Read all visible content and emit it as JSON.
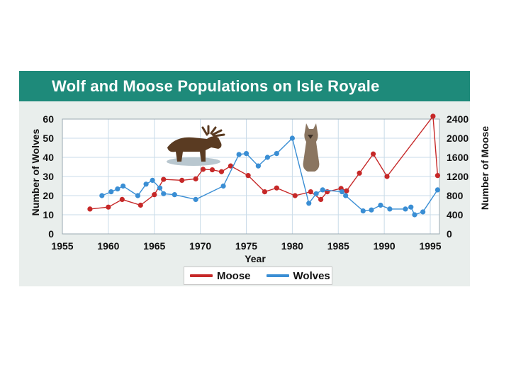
{
  "chart_data": {
    "type": "line",
    "title": "Wolf and Moose Populations on Isle Royale",
    "xlabel": "Year",
    "ylabel_left": "Number of Wolves",
    "ylabel_right": "Number of Moose",
    "xlim": [
      1955,
      1996
    ],
    "x_ticks": [
      "1955",
      "1960",
      "1965",
      "1970",
      "1975",
      "1980",
      "1985",
      "1990",
      "1995"
    ],
    "ylim_left": [
      0,
      60
    ],
    "y_ticks_left": [
      "0",
      "10",
      "20",
      "30",
      "40",
      "50",
      "60"
    ],
    "ylim_right": [
      0,
      2400
    ],
    "y_ticks_right": [
      "0",
      "400",
      "800",
      "1200",
      "1600",
      "2000",
      "2400"
    ],
    "grid": true,
    "legend_position": "bottom-center",
    "series": [
      {
        "name": "Moose",
        "axis": "right",
        "color": "#c62828",
        "points": [
          [
            1958,
            520
          ],
          [
            1960,
            560
          ],
          [
            1961.5,
            720
          ],
          [
            1963.5,
            600
          ],
          [
            1965,
            820
          ],
          [
            1966,
            1140
          ],
          [
            1968,
            1120
          ],
          [
            1969.5,
            1150
          ],
          [
            1970.3,
            1350
          ],
          [
            1971.3,
            1340
          ],
          [
            1972.3,
            1300
          ],
          [
            1973.3,
            1420
          ],
          [
            1975.2,
            1220
          ],
          [
            1977,
            880
          ],
          [
            1978.3,
            960
          ],
          [
            1980.3,
            800
          ],
          [
            1982,
            880
          ],
          [
            1983.1,
            720
          ],
          [
            1983.8,
            880
          ],
          [
            1985.3,
            950
          ],
          [
            1985.9,
            900
          ],
          [
            1987.3,
            1270
          ],
          [
            1988.8,
            1670
          ],
          [
            1990.3,
            1200
          ],
          [
            1995.3,
            2460
          ],
          [
            1995.8,
            1220
          ]
        ]
      },
      {
        "name": "Wolves",
        "axis": "left",
        "color": "#3a8ed4",
        "points": [
          [
            1959.3,
            20
          ],
          [
            1960.3,
            22
          ],
          [
            1961,
            23.5
          ],
          [
            1961.6,
            25
          ],
          [
            1963.2,
            20
          ],
          [
            1964.1,
            26
          ],
          [
            1964.8,
            28
          ],
          [
            1965.6,
            24
          ],
          [
            1966,
            21
          ],
          [
            1967.2,
            20.5
          ],
          [
            1969.5,
            18
          ],
          [
            1972.5,
            25
          ],
          [
            1974.2,
            41.5
          ],
          [
            1975,
            42
          ],
          [
            1976.3,
            35.5
          ],
          [
            1977.3,
            40
          ],
          [
            1978.3,
            42
          ],
          [
            1980,
            50
          ],
          [
            1981.8,
            16
          ],
          [
            1982.6,
            21
          ],
          [
            1983.3,
            23
          ],
          [
            1985.4,
            22
          ],
          [
            1985.8,
            20
          ],
          [
            1987.7,
            12
          ],
          [
            1988.6,
            12.5
          ],
          [
            1989.6,
            15
          ],
          [
            1990.6,
            13
          ],
          [
            1992.3,
            13
          ],
          [
            1992.9,
            14
          ],
          [
            1993.3,
            10
          ],
          [
            1994.2,
            11.5
          ],
          [
            1995.8,
            23
          ]
        ]
      }
    ]
  },
  "legend": {
    "moose_label": "Moose",
    "wolves_label": "Wolves"
  },
  "illustrations": {
    "moose_icon": "moose-photo",
    "wolf_icon": "wolf-photo"
  }
}
